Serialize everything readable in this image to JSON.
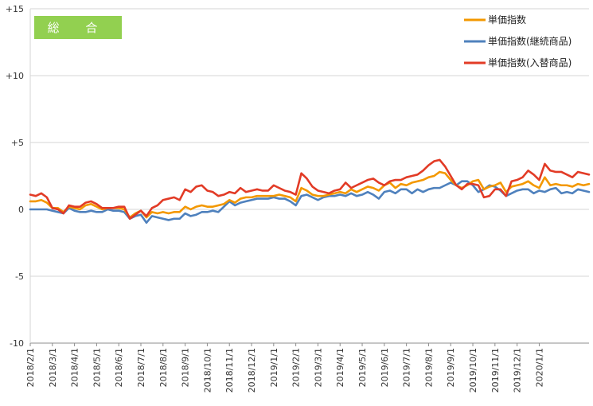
{
  "chart_data": {
    "type": "line",
    "badge": {
      "label": "総 合",
      "color": "#92D050"
    },
    "y_ticks": [
      "+15",
      "+10",
      "+5",
      "0",
      "-5",
      "-10"
    ],
    "y_tick_values": [
      15,
      10,
      5,
      0,
      -5,
      -10
    ],
    "ylim": [
      -10,
      15
    ],
    "x_tick_labels": [
      "2018/2/1",
      "2018/3/1",
      "2018/4/1",
      "2018/5/1",
      "2018/6/1",
      "2018/7/1",
      "2018/8/1",
      "2018/9/1",
      "2018/10/1",
      "2018/11/1",
      "2018/12/1",
      "2019/1/1",
      "2019/2/1",
      "2019/3/1",
      "2019/4/1",
      "2019/5/1",
      "2019/6/1",
      "2019/7/1",
      "2019/8/1",
      "2019/9/1",
      "2019/10/1",
      "2019/11/1",
      "2019/12/1",
      "2020/1/1"
    ],
    "x_tick_index": [
      0,
      4,
      8,
      12,
      16,
      20,
      24,
      28,
      32,
      36,
      40,
      44,
      48,
      52,
      56,
      60,
      64,
      68,
      72,
      76,
      80,
      84,
      88,
      92
    ],
    "legend_position": "top-right",
    "grid": {
      "horizontal": true,
      "vertical": false
    },
    "series": [
      {
        "name": "単価指数",
        "color": "#F39800",
        "values": [
          0.6,
          0.6,
          0.7,
          0.5,
          0.1,
          0.1,
          -0.2,
          0.2,
          0.1,
          0.0,
          0.3,
          0.4,
          0.2,
          0.0,
          0.1,
          0.1,
          0.1,
          0.0,
          -0.6,
          -0.3,
          -0.1,
          -0.6,
          -0.2,
          -0.3,
          -0.2,
          -0.3,
          -0.2,
          -0.2,
          0.2,
          0.0,
          0.2,
          0.3,
          0.2,
          0.2,
          0.3,
          0.4,
          0.7,
          0.5,
          0.8,
          0.9,
          0.9,
          1.0,
          1.0,
          1.0,
          1.0,
          1.1,
          1.0,
          0.9,
          0.6,
          1.6,
          1.4,
          1.1,
          1.0,
          1.0,
          1.1,
          1.2,
          1.3,
          1.2,
          1.5,
          1.3,
          1.5,
          1.7,
          1.6,
          1.4,
          1.8,
          2.0,
          1.6,
          1.9,
          1.8,
          2.0,
          2.1,
          2.2,
          2.4,
          2.5,
          2.8,
          2.7,
          2.2,
          1.8,
          1.6,
          1.8,
          2.1,
          2.2,
          1.5,
          1.7,
          1.8,
          2.0,
          1.3,
          1.7,
          1.8,
          1.9,
          2.1,
          1.8,
          1.6,
          2.4,
          1.8,
          1.9,
          1.8,
          1.8,
          1.7,
          1.9,
          1.8,
          1.9
        ]
      },
      {
        "name": "単価指数(継続商品)",
        "color": "#4F81BD",
        "values": [
          0.0,
          0.0,
          0.0,
          0.0,
          -0.1,
          -0.2,
          -0.3,
          0.1,
          -0.1,
          -0.2,
          -0.2,
          -0.1,
          -0.2,
          -0.2,
          0.0,
          -0.1,
          -0.1,
          -0.2,
          -0.7,
          -0.5,
          -0.4,
          -1.0,
          -0.5,
          -0.6,
          -0.7,
          -0.8,
          -0.7,
          -0.7,
          -0.3,
          -0.5,
          -0.4,
          -0.2,
          -0.2,
          -0.1,
          -0.2,
          0.2,
          0.6,
          0.3,
          0.5,
          0.6,
          0.7,
          0.8,
          0.8,
          0.8,
          0.9,
          0.8,
          0.8,
          0.6,
          0.3,
          1.0,
          1.1,
          0.9,
          0.7,
          0.9,
          1.0,
          1.0,
          1.1,
          1.0,
          1.2,
          1.0,
          1.1,
          1.3,
          1.1,
          0.8,
          1.3,
          1.4,
          1.2,
          1.5,
          1.5,
          1.2,
          1.5,
          1.3,
          1.5,
          1.6,
          1.6,
          1.8,
          2.0,
          1.8,
          2.1,
          2.1,
          1.8,
          1.3,
          1.5,
          1.8,
          1.7,
          1.4,
          1.0,
          1.2,
          1.4,
          1.5,
          1.5,
          1.2,
          1.4,
          1.3,
          1.5,
          1.6,
          1.2,
          1.3,
          1.2,
          1.5,
          1.4,
          1.3
        ]
      },
      {
        "name": "単価指数(入替商品)",
        "color": "#E23B26",
        "values": [
          1.1,
          1.0,
          1.2,
          0.9,
          0.1,
          0.0,
          -0.3,
          0.3,
          0.2,
          0.2,
          0.5,
          0.6,
          0.4,
          0.1,
          0.1,
          0.1,
          0.2,
          0.2,
          -0.7,
          -0.4,
          -0.1,
          -0.5,
          0.1,
          0.3,
          0.7,
          0.8,
          0.9,
          0.7,
          1.5,
          1.3,
          1.7,
          1.8,
          1.4,
          1.3,
          1.0,
          1.1,
          1.3,
          1.2,
          1.6,
          1.3,
          1.4,
          1.5,
          1.4,
          1.4,
          1.8,
          1.6,
          1.4,
          1.3,
          1.1,
          2.7,
          2.3,
          1.7,
          1.4,
          1.3,
          1.2,
          1.4,
          1.5,
          2.0,
          1.6,
          1.8,
          2.0,
          2.2,
          2.3,
          2.0,
          1.8,
          2.1,
          2.2,
          2.2,
          2.4,
          2.5,
          2.6,
          2.9,
          3.3,
          3.6,
          3.7,
          3.2,
          2.5,
          1.8,
          1.5,
          1.9,
          1.9,
          1.8,
          0.9,
          1.0,
          1.5,
          1.5,
          1.0,
          2.1,
          2.2,
          2.4,
          2.9,
          2.6,
          2.2,
          3.4,
          2.9,
          2.8,
          2.8,
          2.6,
          2.4,
          2.8,
          2.7,
          2.6
        ]
      }
    ]
  }
}
